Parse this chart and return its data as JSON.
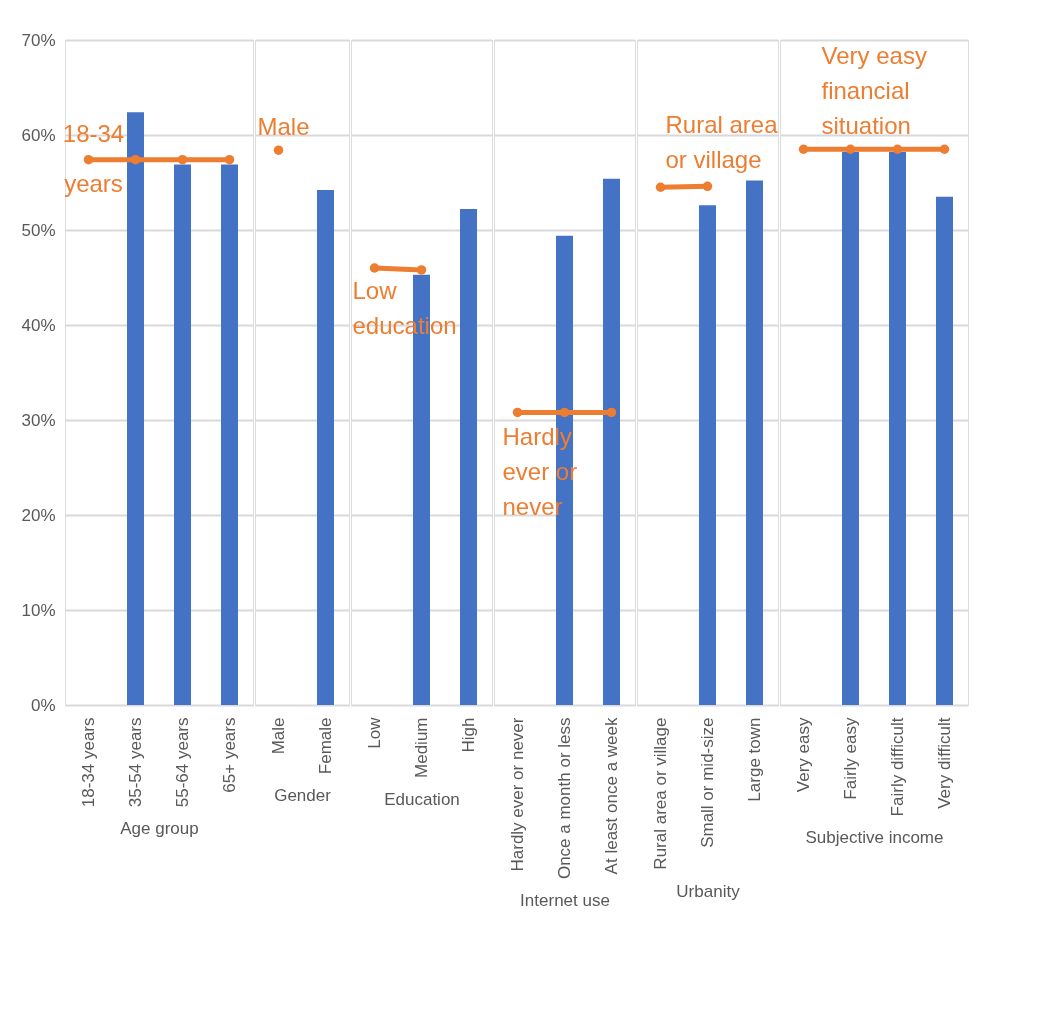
{
  "chart_data": [
    {
      "type": "bar",
      "xlabel": "Age group",
      "categories": [
        "18-34 years",
        "35-54 years",
        "55-64 years",
        "65+ years"
      ],
      "series": [
        {
          "color": "#4472c4",
          "values": [
            null,
            62.4,
            56.9,
            56.9
          ]
        },
        {
          "type": "line",
          "color": "#ed7d31",
          "values": [
            57.4,
            57.4,
            57.4,
            57.4
          ]
        }
      ],
      "annotations": [
        {
          "text": "18-34\nyears",
          "x": "18-34 years",
          "y": 57.4
        }
      ],
      "ylim": [
        0,
        70
      ],
      "yticks": [
        {
          "value": 0,
          "label": "0%"
        },
        {
          "value": 10,
          "label": "10%"
        },
        {
          "value": 20,
          "label": "20%"
        },
        {
          "value": 30,
          "label": "30%"
        },
        {
          "value": 40,
          "label": "40%"
        },
        {
          "value": 50,
          "label": "50%"
        },
        {
          "value": 60,
          "label": "60%"
        },
        {
          "value": 70,
          "label": "70%"
        }
      ],
      "grid": "y",
      "marker": "circle"
    },
    {
      "type": "bar",
      "xlabel": "Gender",
      "categories": [
        "Male",
        "Female"
      ],
      "series": [
        {
          "color": "#4472c4",
          "values": [
            null,
            54.2
          ]
        },
        {
          "type": "line",
          "color": "#ed7d31",
          "values": [
            58.4,
            null
          ]
        }
      ],
      "annotations": [
        {
          "text": "Male",
          "x": "Male",
          "y": 58.4
        }
      ],
      "ylim": [
        0,
        70
      ],
      "grid": "y",
      "tick_labels": "x",
      "marker": "circle"
    },
    {
      "type": "bar",
      "xlabel": "Education",
      "categories": [
        "Low",
        "Medium",
        "High"
      ],
      "series": [
        {
          "color": "#4472c4",
          "values": [
            null,
            45.3,
            52.2
          ]
        },
        {
          "type": "line",
          "color": "#ed7d31",
          "values": [
            46.0,
            45.8,
            null
          ]
        }
      ],
      "annotations": [
        {
          "text": "Low\neducation",
          "x": "Low",
          "y": 46.0
        }
      ],
      "ylim": [
        0,
        70
      ],
      "grid": "y",
      "tick_labels": "x",
      "marker": "circle"
    },
    {
      "type": "bar",
      "xlabel": "Internet use",
      "categories": [
        "Hardly ever or never",
        "Once a month or less",
        "At least once a week"
      ],
      "series": [
        {
          "color": "#4472c4",
          "values": [
            null,
            49.4,
            55.4
          ]
        },
        {
          "type": "line",
          "color": "#ed7d31",
          "values": [
            30.8,
            30.8,
            30.8
          ]
        }
      ],
      "annotations": [
        {
          "text": "Hardly\never or\nnever",
          "x": "Hardly ever or never",
          "y": 30.8
        }
      ],
      "ylim": [
        0,
        70
      ],
      "grid": "y",
      "tick_labels": "x",
      "marker": "circle"
    },
    {
      "type": "bar",
      "xlabel": "Urbanity",
      "categories": [
        "Rural area or village",
        "Small or mid-size",
        "Large town"
      ],
      "series": [
        {
          "color": "#4472c4",
          "values": [
            null,
            52.6,
            55.2
          ]
        },
        {
          "type": "line",
          "color": "#ed7d31",
          "values": [
            54.5,
            54.6,
            null
          ]
        }
      ],
      "annotations": [
        {
          "text": "Rural area\nor village",
          "x": "Rural area or village",
          "y": 54.5
        }
      ],
      "ylim": [
        0,
        70
      ],
      "grid": "y",
      "tick_labels": "x",
      "marker": "circle"
    },
    {
      "type": "bar",
      "xlabel": "Subjective income",
      "categories": [
        "Very easy",
        "Fairly easy",
        "Fairly difficult",
        "Very difficult"
      ],
      "series": [
        {
          "color": "#4472c4",
          "values": [
            null,
            58.2,
            58.2,
            53.5
          ]
        },
        {
          "type": "line",
          "color": "#ed7d31",
          "values": [
            58.5,
            58.5,
            58.5,
            58.5
          ]
        }
      ],
      "annotations": [
        {
          "text": "Very easy\nfinancial\nsituation",
          "x": "Very easy",
          "y": 58.5
        }
      ],
      "ylim": [
        0,
        70
      ],
      "grid": "y",
      "tick_labels": "x",
      "marker": "circle"
    }
  ]
}
